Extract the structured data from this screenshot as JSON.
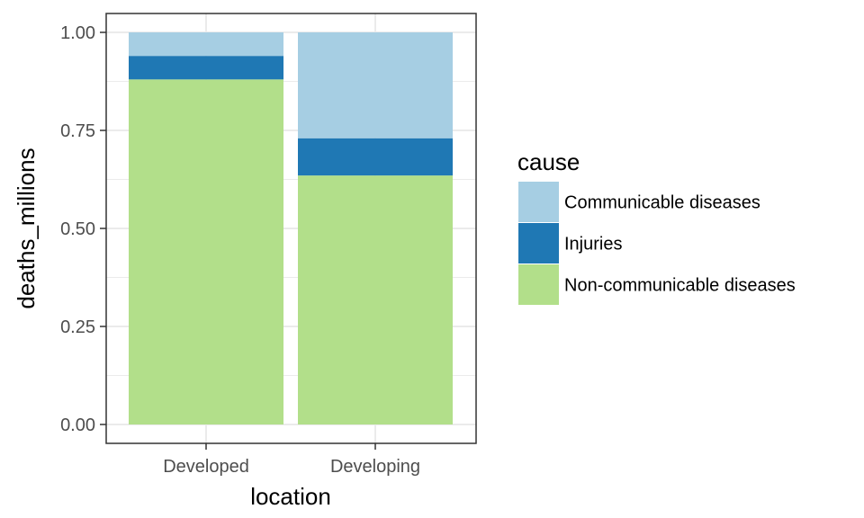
{
  "chart_data": {
    "type": "bar",
    "stacked": true,
    "categories": [
      "Developed",
      "Developing"
    ],
    "series": [
      {
        "name": "Non-communicable diseases",
        "color": "#b2df8a",
        "values": [
          0.88,
          0.635
        ]
      },
      {
        "name": "Injuries",
        "color": "#1f78b4",
        "values": [
          0.06,
          0.095
        ]
      },
      {
        "name": "Communicable diseases",
        "color": "#a6cee3",
        "values": [
          0.06,
          0.27
        ]
      }
    ],
    "xlabel": "location",
    "ylabel": "deaths_millions",
    "ylim": [
      0,
      1
    ],
    "yticks": [
      "0.00",
      "0.25",
      "0.50",
      "0.75",
      "1.00"
    ],
    "grid": true,
    "legend": {
      "title": "cause",
      "position": "right",
      "entries": [
        {
          "label": "Communicable diseases",
          "color": "#a6cee3"
        },
        {
          "label": "Injuries",
          "color": "#1f78b4"
        },
        {
          "label": "Non-communicable diseases",
          "color": "#b2df8a"
        }
      ]
    }
  }
}
